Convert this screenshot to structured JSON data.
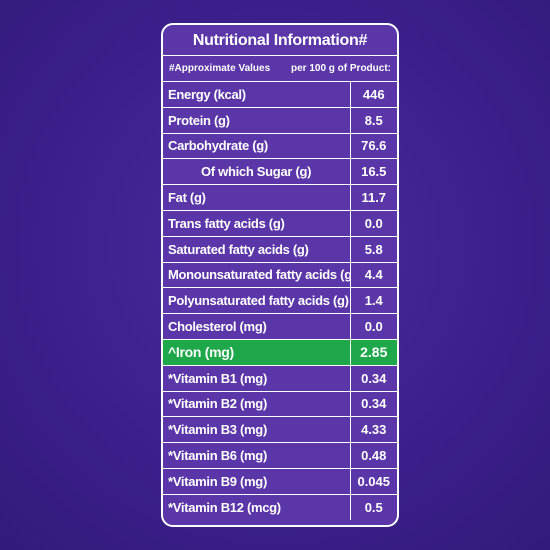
{
  "title": "Nutritional Information#",
  "subheader": {
    "left": "#Approximate Values",
    "right": "per 100 g of Product:"
  },
  "rows": [
    {
      "name": "Energy (kcal)",
      "value": "446"
    },
    {
      "name": "Protein (g)",
      "value": "8.5"
    },
    {
      "name": "Carbohydrate (g)",
      "value": "76.6"
    },
    {
      "name": "Of which Sugar (g)",
      "value": "16.5"
    },
    {
      "name": "Fat (g)",
      "value": "11.7"
    },
    {
      "name": "Trans fatty acids (g)",
      "value": "0.0"
    },
    {
      "name": "Saturated fatty acids (g)",
      "value": "5.8"
    },
    {
      "name": "Monounsaturated fatty acids (g)",
      "value": "4.4"
    },
    {
      "name": "Polyunsaturated fatty acids (g)",
      "value": "1.4"
    },
    {
      "name": "Cholesterol (mg)",
      "value": "0.0"
    },
    {
      "name": "^Iron (mg)",
      "value": "2.85"
    },
    {
      "name": "*Vitamin B1 (mg)",
      "value": "0.34"
    },
    {
      "name": "*Vitamin B2 (mg)",
      "value": "0.34"
    },
    {
      "name": "*Vitamin B3 (mg)",
      "value": "4.33"
    },
    {
      "name": "*Vitamin B6 (mg)",
      "value": "0.48"
    },
    {
      "name": "*Vitamin B9 (mg)",
      "value": "0.045"
    },
    {
      "name": "*Vitamin B12 (mcg)",
      "value": "0.5"
    }
  ],
  "colors": {
    "background": "#3a1f8c",
    "panel": "#5b36a8",
    "highlight": "#1ea84a",
    "text": "#ffffff"
  }
}
